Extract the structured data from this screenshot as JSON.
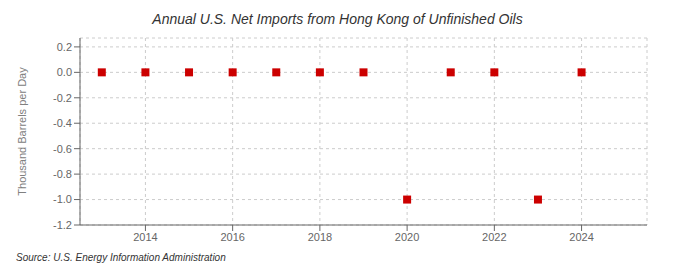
{
  "chart_data": {
    "type": "scatter",
    "title": "Annual U.S. Net Imports from Hong Kong of Unfinished Oils",
    "ylabel": "Thousand Barrels per Day",
    "annotations": [
      "Source: U.S. Energy Information Administration"
    ],
    "x": [
      2013,
      2014,
      2015,
      2016,
      2017,
      2018,
      2019,
      2020,
      2021,
      2022,
      2023,
      2024
    ],
    "values": [
      0,
      0,
      0,
      0,
      0,
      0,
      0,
      -1.0,
      0,
      0,
      -1.0,
      0
    ],
    "xlim": [
      2012.5,
      2025.5
    ],
    "ylim": [
      -1.2,
      0.27
    ],
    "xticks": [
      2014,
      2016,
      2018,
      2020,
      2022,
      2024
    ],
    "yticks": [
      0.2,
      {
        "value": 0,
        "label": "0.0"
      },
      -0.2,
      -0.4,
      -0.6,
      -0.8,
      {
        "value": -1.0,
        "label": "-1.0"
      },
      -1.2
    ],
    "color": "#cc0000",
    "marker": "square",
    "grid": true
  }
}
